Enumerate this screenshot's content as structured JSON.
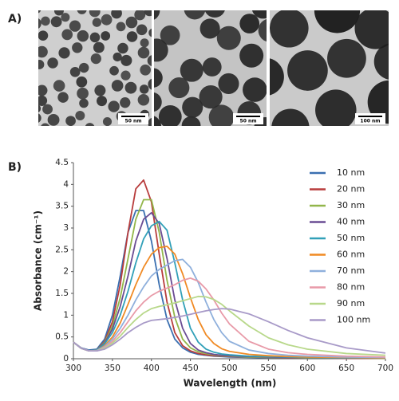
{
  "panel_a": {
    "label": "A)",
    "scale_bars": [
      "50 nm",
      "50 nm",
      "100 nm"
    ]
  },
  "chart_data": {
    "type": "line",
    "panel_label": "B)",
    "x_label": "Wavelength (nm)",
    "y_label": "Absorbance (cm⁻¹)",
    "x": [
      300,
      310,
      320,
      330,
      340,
      350,
      360,
      370,
      380,
      390,
      400,
      410,
      420,
      430,
      440,
      450,
      460,
      470,
      480,
      490,
      500,
      525,
      550,
      575,
      600,
      650,
      700
    ],
    "xlim": [
      300,
      700
    ],
    "xticks": [
      300,
      350,
      400,
      450,
      500,
      550,
      600,
      650,
      700
    ],
    "ylim": [
      0,
      4.5
    ],
    "yticks": [
      0,
      0.5,
      1,
      1.5,
      2,
      2.5,
      3,
      3.5,
      4,
      4.5
    ],
    "grid": false,
    "legend": "top-right",
    "series": [
      {
        "name": "10 nm",
        "color": "#3a6fb0",
        "values": [
          0.38,
          0.25,
          0.2,
          0.22,
          0.45,
          1.0,
          1.9,
          2.9,
          3.4,
          3.4,
          2.7,
          1.7,
          0.9,
          0.45,
          0.25,
          0.15,
          0.1,
          0.08,
          0.06,
          0.05,
          0.04,
          0.03,
          0.02,
          0.02,
          0.02,
          0.01,
          0.01
        ]
      },
      {
        "name": "20 nm",
        "color": "#b83c3c",
        "values": [
          0.38,
          0.24,
          0.18,
          0.2,
          0.4,
          0.85,
          1.7,
          2.9,
          3.9,
          4.1,
          3.6,
          2.4,
          1.3,
          0.6,
          0.3,
          0.18,
          0.12,
          0.09,
          0.07,
          0.06,
          0.05,
          0.04,
          0.03,
          0.02,
          0.02,
          0.01,
          0.01
        ]
      },
      {
        "name": "30 nm",
        "color": "#92b64a",
        "values": [
          0.38,
          0.24,
          0.18,
          0.2,
          0.38,
          0.75,
          1.4,
          2.3,
          3.2,
          3.65,
          3.65,
          2.9,
          1.8,
          0.95,
          0.45,
          0.25,
          0.16,
          0.12,
          0.09,
          0.07,
          0.06,
          0.04,
          0.03,
          0.03,
          0.02,
          0.02,
          0.01
        ]
      },
      {
        "name": "40 nm",
        "color": "#6a4c93",
        "values": [
          0.38,
          0.24,
          0.18,
          0.2,
          0.36,
          0.68,
          1.2,
          1.9,
          2.7,
          3.2,
          3.35,
          3.1,
          2.3,
          1.35,
          0.7,
          0.35,
          0.2,
          0.14,
          0.1,
          0.08,
          0.07,
          0.05,
          0.04,
          0.03,
          0.03,
          0.02,
          0.02
        ]
      },
      {
        "name": "50 nm",
        "color": "#31a0b8",
        "values": [
          0.38,
          0.24,
          0.18,
          0.2,
          0.34,
          0.6,
          1.0,
          1.55,
          2.2,
          2.75,
          3.05,
          3.15,
          2.95,
          2.2,
          1.35,
          0.7,
          0.38,
          0.22,
          0.15,
          0.11,
          0.09,
          0.06,
          0.05,
          0.04,
          0.03,
          0.02,
          0.02
        ]
      },
      {
        "name": "60 nm",
        "color": "#f08a24",
        "values": [
          0.38,
          0.24,
          0.18,
          0.19,
          0.3,
          0.5,
          0.82,
          1.25,
          1.7,
          2.1,
          2.4,
          2.55,
          2.58,
          2.4,
          1.95,
          1.4,
          0.9,
          0.55,
          0.35,
          0.23,
          0.17,
          0.1,
          0.07,
          0.05,
          0.04,
          0.03,
          0.02
        ]
      },
      {
        "name": "70 nm",
        "color": "#8fb0dc",
        "values": [
          0.38,
          0.24,
          0.18,
          0.19,
          0.28,
          0.45,
          0.7,
          1.0,
          1.35,
          1.65,
          1.9,
          2.05,
          2.15,
          2.25,
          2.28,
          2.1,
          1.75,
          1.3,
          0.9,
          0.6,
          0.4,
          0.2,
          0.12,
          0.08,
          0.06,
          0.04,
          0.03
        ]
      },
      {
        "name": "80 nm",
        "color": "#e89aa8",
        "values": [
          0.38,
          0.24,
          0.18,
          0.18,
          0.26,
          0.4,
          0.6,
          0.85,
          1.1,
          1.3,
          1.45,
          1.55,
          1.62,
          1.7,
          1.8,
          1.85,
          1.78,
          1.6,
          1.35,
          1.05,
          0.8,
          0.4,
          0.22,
          0.14,
          0.1,
          0.06,
          0.04
        ]
      },
      {
        "name": "90 nm",
        "color": "#b8d88a",
        "values": [
          0.38,
          0.24,
          0.18,
          0.18,
          0.24,
          0.36,
          0.52,
          0.72,
          0.9,
          1.05,
          1.15,
          1.2,
          1.24,
          1.28,
          1.33,
          1.38,
          1.43,
          1.42,
          1.36,
          1.25,
          1.1,
          0.75,
          0.48,
          0.32,
          0.22,
          0.12,
          0.08
        ]
      },
      {
        "name": "100 nm",
        "color": "#a89ac8",
        "values": [
          0.38,
          0.24,
          0.18,
          0.18,
          0.22,
          0.32,
          0.45,
          0.6,
          0.72,
          0.82,
          0.88,
          0.9,
          0.92,
          0.95,
          0.98,
          1.02,
          1.06,
          1.1,
          1.13,
          1.15,
          1.14,
          1.03,
          0.85,
          0.65,
          0.48,
          0.25,
          0.13
        ]
      }
    ]
  }
}
